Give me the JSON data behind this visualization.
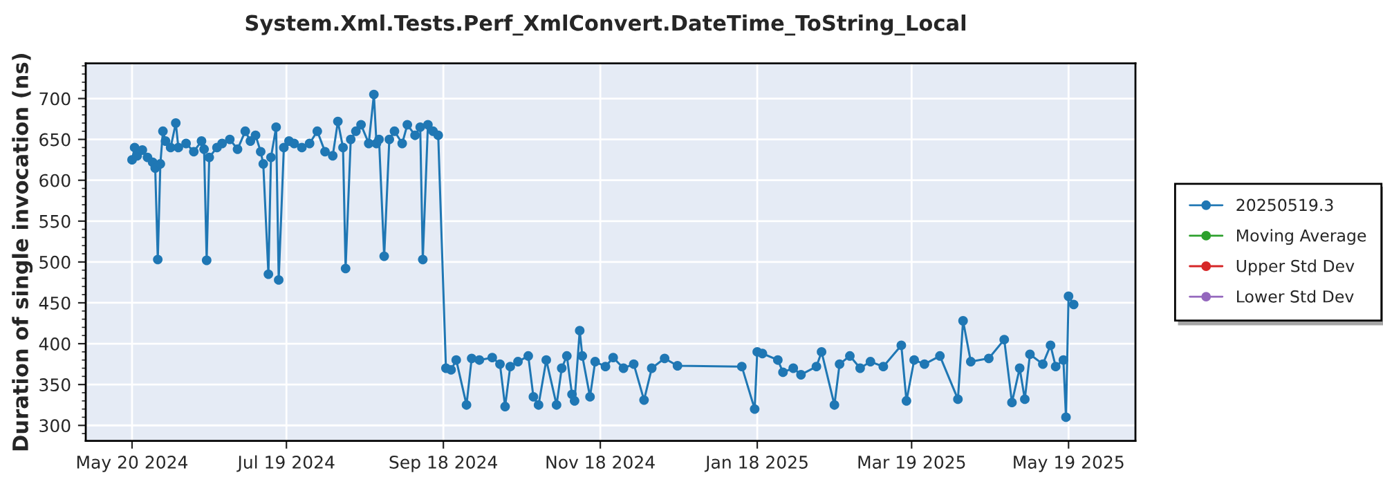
{
  "chart_data": {
    "type": "line",
    "title": "System.Xml.Tests.Perf_XmlConvert.DateTime_ToString_Local",
    "ylabel": "Duration of single invocation (ns)",
    "x": [
      "2024-05-20",
      "2024-05-21",
      "2024-05-22",
      "2024-05-24",
      "2024-05-26",
      "2024-05-28",
      "2024-05-29",
      "2024-05-30",
      "2024-05-31",
      "2024-06-01",
      "2024-06-02",
      "2024-06-04",
      "2024-06-06",
      "2024-06-07",
      "2024-06-10",
      "2024-06-13",
      "2024-06-16",
      "2024-06-17",
      "2024-06-18",
      "2024-06-19",
      "2024-06-22",
      "2024-06-24",
      "2024-06-27",
      "2024-06-30",
      "2024-07-03",
      "2024-07-05",
      "2024-07-07",
      "2024-07-09",
      "2024-07-10",
      "2024-07-12",
      "2024-07-13",
      "2024-07-15",
      "2024-07-16",
      "2024-07-18",
      "2024-07-20",
      "2024-07-22",
      "2024-07-25",
      "2024-07-28",
      "2024-07-31",
      "2024-08-03",
      "2024-08-06",
      "2024-08-08",
      "2024-08-10",
      "2024-08-11",
      "2024-08-13",
      "2024-08-15",
      "2024-08-17",
      "2024-08-20",
      "2024-08-22",
      "2024-08-23",
      "2024-08-24",
      "2024-08-26",
      "2024-08-28",
      "2024-08-30",
      "2024-09-02",
      "2024-09-04",
      "2024-09-07",
      "2024-09-09",
      "2024-09-10",
      "2024-09-12",
      "2024-09-14",
      "2024-09-16",
      "2024-09-19",
      "2024-09-21",
      "2024-09-23",
      "2024-09-27",
      "2024-09-29",
      "2024-10-02",
      "2024-10-07",
      "2024-10-10",
      "2024-10-12",
      "2024-10-14",
      "2024-10-17",
      "2024-10-21",
      "2024-10-23",
      "2024-10-25",
      "2024-10-28",
      "2024-11-01",
      "2024-11-03",
      "2024-11-05",
      "2024-11-07",
      "2024-11-08",
      "2024-11-10",
      "2024-11-11",
      "2024-11-14",
      "2024-11-16",
      "2024-11-20",
      "2024-11-23",
      "2024-11-27",
      "2024-12-01",
      "2024-12-05",
      "2024-12-08",
      "2024-12-13",
      "2024-12-18",
      "2025-01-12",
      "2025-01-17",
      "2025-01-18",
      "2025-01-20",
      "2025-01-26",
      "2025-01-28",
      "2025-02-01",
      "2025-02-04",
      "2025-02-10",
      "2025-02-12",
      "2025-02-17",
      "2025-02-19",
      "2025-02-23",
      "2025-02-27",
      "2025-03-03",
      "2025-03-08",
      "2025-03-15",
      "2025-03-17",
      "2025-03-20",
      "2025-03-24",
      "2025-03-30",
      "2025-04-06",
      "2025-04-08",
      "2025-04-11",
      "2025-04-18",
      "2025-04-24",
      "2025-04-27",
      "2025-04-30",
      "2025-05-02",
      "2025-05-04",
      "2025-05-09",
      "2025-05-12",
      "2025-05-14",
      "2025-05-17",
      "2025-05-18",
      "2025-05-19",
      "2025-05-21"
    ],
    "series": [
      {
        "name": "20250519.3",
        "color": "#1f77b4",
        "values": [
          625,
          640,
          630,
          637,
          628,
          622,
          615,
          503,
          620,
          660,
          648,
          640,
          670,
          640,
          645,
          635,
          648,
          638,
          502,
          628,
          640,
          645,
          650,
          638,
          660,
          648,
          655,
          635,
          620,
          485,
          628,
          665,
          478,
          640,
          648,
          645,
          640,
          645,
          660,
          635,
          630,
          672,
          640,
          492,
          650,
          660,
          668,
          645,
          705,
          645,
          650,
          507,
          650,
          660,
          645,
          668,
          655,
          665,
          503,
          668,
          660,
          655,
          370,
          368,
          380,
          325,
          382,
          380,
          383,
          375,
          323,
          372,
          378,
          385,
          335,
          325,
          380,
          325,
          370,
          385,
          338,
          330,
          416,
          385,
          335,
          378,
          372,
          383,
          370,
          375,
          331,
          370,
          382,
          373,
          372,
          320,
          390,
          388,
          380,
          365,
          370,
          362,
          372,
          390,
          325,
          375,
          385,
          370,
          378,
          372,
          398,
          330,
          380,
          375,
          385,
          332,
          428,
          378,
          382,
          405,
          328,
          370,
          332,
          387,
          375,
          398,
          372,
          380,
          310,
          458,
          448
        ]
      },
      {
        "name": "Moving Average",
        "color": "#2ca02c",
        "values": [
          null,
          null,
          null,
          null,
          null,
          null,
          null,
          null,
          null,
          null,
          null,
          null,
          null,
          null,
          null,
          null,
          null,
          null,
          null,
          null,
          null,
          null,
          null,
          null,
          null,
          null,
          null,
          null,
          null,
          null,
          null,
          null,
          null,
          null,
          null,
          null,
          null,
          null,
          null,
          null,
          null,
          null,
          null,
          null,
          null,
          null,
          null,
          null,
          null,
          null,
          null,
          null,
          null,
          null,
          null,
          null,
          null,
          null,
          null,
          null,
          null,
          null,
          null,
          null,
          null,
          null,
          null,
          null,
          null,
          null,
          null,
          null,
          null,
          null,
          null,
          null,
          null,
          null,
          null,
          null,
          null,
          null,
          null,
          null,
          null,
          null,
          null,
          null,
          null,
          null,
          null,
          null,
          null,
          null,
          null,
          null,
          null,
          null,
          null,
          null,
          null,
          null,
          null,
          null,
          null,
          null,
          null,
          null,
          null,
          null,
          null,
          null,
          null,
          null,
          null,
          null,
          null,
          null,
          null,
          null,
          null,
          null,
          null,
          null,
          null,
          null,
          null,
          null,
          null,
          null,
          null
        ]
      },
      {
        "name": "Upper Std Dev",
        "color": "#d62728",
        "values": [
          null,
          null,
          null,
          null,
          null,
          null,
          null,
          null,
          null,
          null,
          null,
          null,
          null,
          null,
          null,
          null,
          null,
          null,
          null,
          null,
          null,
          null,
          null,
          null,
          null,
          null,
          null,
          null,
          null,
          null,
          null,
          null,
          null,
          null,
          null,
          null,
          null,
          null,
          null,
          null,
          null,
          null,
          null,
          null,
          null,
          null,
          null,
          null,
          null,
          null,
          null,
          null,
          null,
          null,
          null,
          null,
          null,
          null,
          null,
          null,
          null,
          null,
          null,
          null,
          null,
          null,
          null,
          null,
          null,
          null,
          null,
          null,
          null,
          null,
          null,
          null,
          null,
          null,
          null,
          null,
          null,
          null,
          null,
          null,
          null,
          null,
          null,
          null,
          null,
          null,
          null,
          null,
          null,
          null,
          null,
          null,
          null,
          null,
          null,
          null,
          null,
          null,
          null,
          null,
          null,
          null,
          null,
          null,
          null,
          null,
          null,
          null,
          null,
          null,
          null,
          null,
          null,
          null,
          null,
          null,
          null,
          null,
          null,
          null,
          null,
          null,
          null,
          null,
          null,
          null,
          null
        ]
      },
      {
        "name": "Lower Std Dev",
        "color": "#9467bd",
        "values": [
          null,
          null,
          null,
          null,
          null,
          null,
          null,
          null,
          null,
          null,
          null,
          null,
          null,
          null,
          null,
          null,
          null,
          null,
          null,
          null,
          null,
          null,
          null,
          null,
          null,
          null,
          null,
          null,
          null,
          null,
          null,
          null,
          null,
          null,
          null,
          null,
          null,
          null,
          null,
          null,
          null,
          null,
          null,
          null,
          null,
          null,
          null,
          null,
          null,
          null,
          null,
          null,
          null,
          null,
          null,
          null,
          null,
          null,
          null,
          null,
          null,
          null,
          null,
          null,
          null,
          null,
          null,
          null,
          null,
          null,
          null,
          null,
          null,
          null,
          null,
          null,
          null,
          null,
          null,
          null,
          null,
          null,
          null,
          null,
          null,
          null,
          null,
          null,
          null,
          null,
          null,
          null,
          null,
          null,
          null,
          null,
          null,
          null,
          null,
          null,
          null,
          null,
          null,
          null,
          null,
          null,
          null,
          null,
          null,
          null,
          null,
          null,
          null,
          null,
          null,
          null,
          null,
          null,
          null,
          null,
          null,
          null,
          null,
          null,
          null,
          null,
          null,
          null,
          null,
          null,
          null
        ]
      }
    ],
    "xlim": [
      "2024-05-02",
      "2025-06-14"
    ],
    "xticks": [
      {
        "value": "2024-05-20",
        "label": "May 20 2024"
      },
      {
        "value": "2024-07-19",
        "label": "Jul 19 2024"
      },
      {
        "value": "2024-09-18",
        "label": "Sep 18 2024"
      },
      {
        "value": "2024-11-18",
        "label": "Nov 18 2024"
      },
      {
        "value": "2025-01-18",
        "label": "Jan 18 2025"
      },
      {
        "value": "2025-03-19",
        "label": "Mar 19 2025"
      },
      {
        "value": "2025-05-19",
        "label": "May 19 2025"
      }
    ],
    "ylim": [
      281,
      743
    ],
    "yticks": [
      300,
      350,
      400,
      450,
      500,
      550,
      600,
      650,
      700
    ],
    "grid": true,
    "legend": "right",
    "marker": "circle",
    "line_style": "solid"
  }
}
